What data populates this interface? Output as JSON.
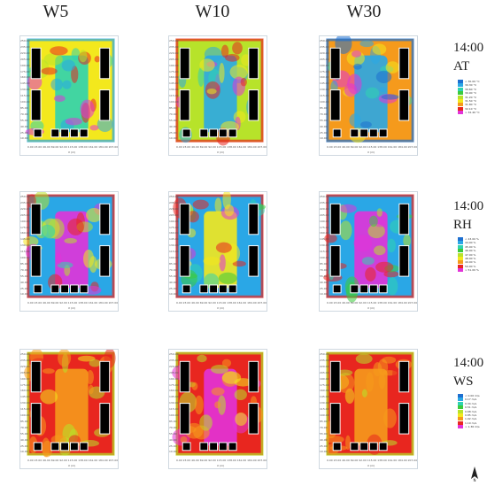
{
  "columns": [
    "W5",
    "W10",
    "W30"
  ],
  "rows": [
    {
      "time": "14:00",
      "var": "AT"
    },
    {
      "time": "14:00",
      "var": "RH"
    },
    {
      "time": "14:00",
      "var": "WS"
    }
  ],
  "axis": {
    "x_name": "X (m)",
    "y_name": "Y (m)",
    "x_ticks": [
      "0.00",
      "23.00",
      "46.00",
      "69.00",
      "92.00",
      "115.00",
      "138.00",
      "161.00",
      "184.00",
      "207.00",
      "230.00"
    ],
    "y_ticks": [
      "250.00",
      "235.00",
      "220.00",
      "205.00",
      "190.00",
      "175.00",
      "160.00",
      "145.00",
      "130.00",
      "115.00",
      "100.00",
      "85.00",
      "70.00",
      "55.00",
      "40.00",
      "25.00",
      "10.00"
    ]
  },
  "legends": {
    "AT": [
      "< 30.00 °C",
      "30.30 °C",
      "30.60 °C",
      "30.90 °C",
      "31.20 °C",
      "31.50 °C",
      "31.80 °C",
      "32.10 °C",
      "> 32.40 °C"
    ],
    "RH": [
      "< 43.00 %",
      "44.00 %",
      "45.00 %",
      "46.00 %",
      "47.00 %",
      "48.00 %",
      "49.00 %",
      "50.00 %",
      "> 51.00 %"
    ],
    "WS": [
      "< 0.00 m/s",
      "0.17 m/s",
      "0.34 m/s",
      "0.51 m/s",
      "0.68 m/s",
      "0.85 m/s",
      "1.02 m/s",
      "1.19 m/s",
      "> 1.36 m/s"
    ]
  },
  "legend_colors": [
    "#1e6fd0",
    "#2aa7e6",
    "#2fd3b0",
    "#3ccb3c",
    "#b7e32a",
    "#f3e81d",
    "#f59a1c",
    "#e8261f",
    "#e233d8"
  ],
  "north_icon": "north-arrow-icon"
}
